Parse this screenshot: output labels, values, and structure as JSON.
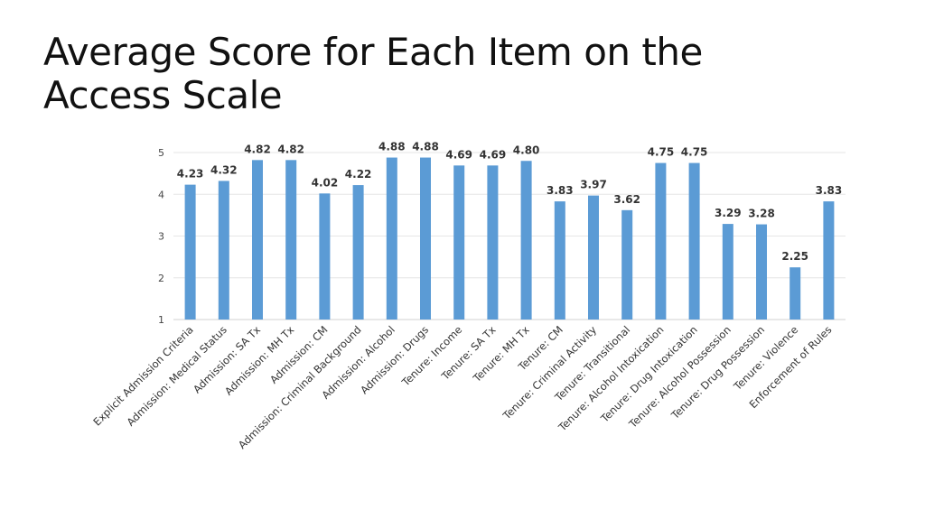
{
  "slide": {
    "title_line1": "Average Score for Each Item on the",
    "title_line2": "Access Scale"
  },
  "chart_data": {
    "type": "bar",
    "title": "",
    "xlabel": "",
    "ylabel": "",
    "ylim": [
      1,
      5
    ],
    "yticks": [
      1,
      2,
      3,
      4,
      5
    ],
    "grid": true,
    "bar_color": "#5b9bd5",
    "categories": [
      "Explicit Admission Criteria",
      "Admission: Medical Status",
      "Admission: SA Tx",
      "Admission: MH Tx",
      "Admission: CM",
      "Admission: Criminal Background",
      "Admission: Alcohol",
      "Admission: Drugs",
      "Tenure: Income",
      "Tenure: SA Tx",
      "Tenure: MH Tx",
      "Tenure: CM",
      "Tenure: Criminal Activity",
      "Tenure: Transitional",
      "Tenure: Alcohol Intoxication",
      "Tenure: Drug Intoxication",
      "Tenure: Alcohol Possession",
      "Tenure: Drug Possession",
      "Tenure: Violence",
      "Enforcement of Rules"
    ],
    "values": [
      4.23,
      4.32,
      4.82,
      4.82,
      4.02,
      4.22,
      4.88,
      4.88,
      4.69,
      4.69,
      4.8,
      3.83,
      3.97,
      3.62,
      4.75,
      4.75,
      3.29,
      3.28,
      2.25,
      3.83
    ],
    "value_labels": [
      "4.23",
      "4.32",
      "4.82",
      "4.82",
      "4.02",
      "4.22",
      "4.88",
      "4.88",
      "4.69",
      "4.69",
      "4.80",
      "3.83",
      "3.97",
      "3.62",
      "4.75",
      "4.75",
      "3.29",
      "3.28",
      "2.25",
      "3.83"
    ]
  }
}
